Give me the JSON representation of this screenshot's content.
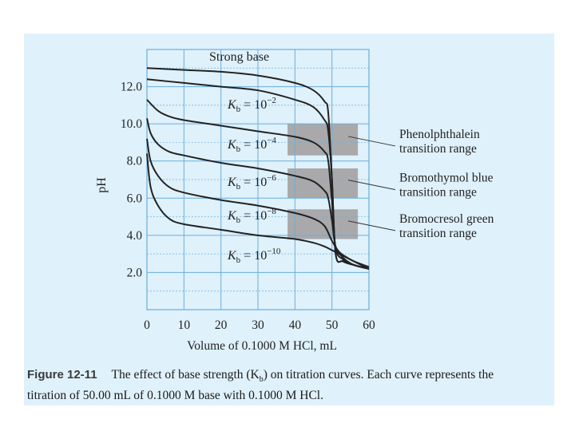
{
  "chart_data": {
    "type": "line",
    "xlabel": "Volume of 0.1000 M HCl, mL",
    "ylabel": "pH",
    "xlim": [
      0,
      60
    ],
    "ylim": [
      0,
      14
    ],
    "x_ticks": [
      "0",
      "10",
      "20",
      "30",
      "40",
      "50",
      "60"
    ],
    "y_ticks": [
      "2.0",
      "4.0",
      "6.0",
      "8.0",
      "10.0",
      "12.0"
    ],
    "grid": true,
    "series": [
      {
        "name": "Strong base",
        "label_parts": [
          "Strong base"
        ],
        "points": [
          [
            0,
            13.0
          ],
          [
            10,
            12.9
          ],
          [
            20,
            12.8
          ],
          [
            30,
            12.6
          ],
          [
            40,
            12.2
          ],
          [
            45,
            11.8
          ],
          [
            48,
            11.2
          ],
          [
            49,
            10.6
          ],
          [
            50,
            7.0
          ],
          [
            51,
            3.0
          ],
          [
            53,
            2.6
          ],
          [
            56,
            2.4
          ],
          [
            60,
            2.2
          ]
        ]
      },
      {
        "name": "Kb = 10^-2",
        "label_parts": [
          "K",
          "b",
          " = 10",
          "−2"
        ],
        "points": [
          [
            0,
            12.4
          ],
          [
            10,
            12.2
          ],
          [
            20,
            12.0
          ],
          [
            30,
            11.8
          ],
          [
            40,
            11.3
          ],
          [
            45,
            10.9
          ],
          [
            48,
            10.2
          ],
          [
            49,
            9.6
          ],
          [
            50,
            7.0
          ],
          [
            51,
            3.0
          ],
          [
            53,
            2.6
          ],
          [
            56,
            2.4
          ],
          [
            60,
            2.2
          ]
        ]
      },
      {
        "name": "Kb = 10^-4",
        "label_parts": [
          "K",
          "b",
          " = 10",
          "−4"
        ],
        "points": [
          [
            0,
            11.3
          ],
          [
            3,
            10.7
          ],
          [
            6,
            10.4
          ],
          [
            10,
            10.2
          ],
          [
            20,
            9.9
          ],
          [
            30,
            9.6
          ],
          [
            40,
            9.3
          ],
          [
            45,
            9.0
          ],
          [
            48,
            8.5
          ],
          [
            49,
            8.0
          ],
          [
            50,
            5.8
          ],
          [
            51,
            3.3
          ],
          [
            53,
            2.7
          ],
          [
            56,
            2.4
          ],
          [
            60,
            2.2
          ]
        ]
      },
      {
        "name": "Kb = 10^-6",
        "label_parts": [
          "K",
          "b",
          " = 10",
          "−6"
        ],
        "points": [
          [
            0,
            10.3
          ],
          [
            1,
            9.5
          ],
          [
            3,
            8.9
          ],
          [
            6,
            8.5
          ],
          [
            10,
            8.3
          ],
          [
            20,
            7.9
          ],
          [
            30,
            7.6
          ],
          [
            40,
            7.2
          ],
          [
            45,
            6.9
          ],
          [
            48,
            6.4
          ],
          [
            49,
            6.0
          ],
          [
            50,
            4.8
          ],
          [
            51,
            3.4
          ],
          [
            53,
            2.8
          ],
          [
            56,
            2.4
          ],
          [
            60,
            2.2
          ]
        ]
      },
      {
        "name": "Kb = 10^-8",
        "label_parts": [
          "K",
          "b",
          " = 10",
          "−8"
        ],
        "points": [
          [
            0,
            9.2
          ],
          [
            1,
            8.0
          ],
          [
            3,
            7.2
          ],
          [
            6,
            6.6
          ],
          [
            10,
            6.3
          ],
          [
            20,
            5.9
          ],
          [
            30,
            5.6
          ],
          [
            40,
            5.2
          ],
          [
            45,
            4.9
          ],
          [
            48,
            4.5
          ],
          [
            50,
            3.7
          ],
          [
            52,
            3.1
          ],
          [
            55,
            2.7
          ],
          [
            60,
            2.2
          ]
        ]
      },
      {
        "name": "Kb = 10^-10",
        "label_parts": [
          "K",
          "b",
          " = 10",
          "−10"
        ],
        "points": [
          [
            0,
            8.4
          ],
          [
            1,
            6.6
          ],
          [
            3,
            5.6
          ],
          [
            6,
            4.9
          ],
          [
            10,
            4.6
          ],
          [
            20,
            4.3
          ],
          [
            30,
            4.0
          ],
          [
            40,
            3.8
          ],
          [
            45,
            3.6
          ],
          [
            48,
            3.4
          ],
          [
            50,
            3.2
          ],
          [
            53,
            2.9
          ],
          [
            56,
            2.6
          ],
          [
            60,
            2.3
          ]
        ]
      }
    ],
    "bands": [
      {
        "ymin": 8.3,
        "ymax": 10.0,
        "xmin": 38,
        "xmax": 57,
        "label": [
          "Phenolphthalein",
          "transition range"
        ]
      },
      {
        "ymin": 6.0,
        "ymax": 7.6,
        "xmin": 38,
        "xmax": 57,
        "label": [
          "Bromothymol blue",
          "transition range"
        ]
      },
      {
        "ymin": 3.8,
        "ymax": 5.4,
        "xmin": 38,
        "xmax": 57,
        "label": [
          "Bromocresol green",
          "transition range"
        ]
      }
    ]
  },
  "caption": {
    "figure_label": "Figure 12-11",
    "text_line1": "The effect of base strength (K",
    "text_sub": "b",
    "text_line1_end": ") on titration curves. Each curve represents the",
    "text_line2": "titration of 50.00 mL of 0.1000 M base with 0.1000 M HCl."
  },
  "colors": {
    "background_panel": "#dff1fb",
    "grid": "#6aaedd",
    "curve": "#222222",
    "band": "#a9a9ab"
  }
}
